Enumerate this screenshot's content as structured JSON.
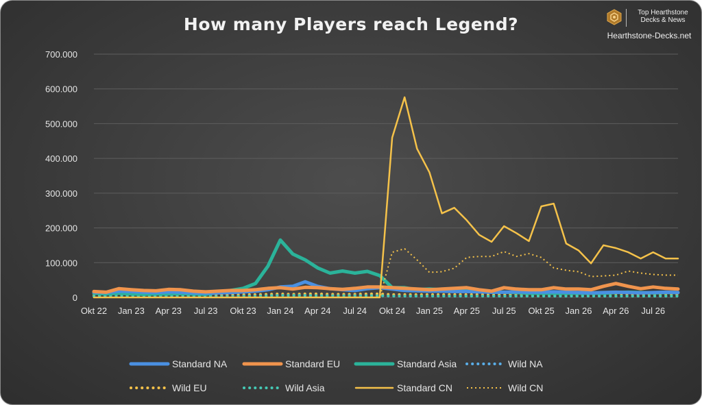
{
  "branding": {
    "line1": "Top Hearthstone",
    "line2": "Decks & News",
    "site": "Hearthstone-Decks.net",
    "logo_icon": "hexagon-logo-icon"
  },
  "chart_data": {
    "type": "line",
    "title": "How many Players reach Legend?",
    "xlabel": "",
    "ylabel": "",
    "ylim": [
      0,
      700000
    ],
    "yticks": [
      0,
      100000,
      200000,
      300000,
      400000,
      500000,
      600000,
      700000
    ],
    "ytick_labels": [
      "0",
      "100.000",
      "200.000",
      "300.000",
      "400.000",
      "500.000",
      "600.000",
      "700.000"
    ],
    "grid": true,
    "legend_position": "bottom",
    "x_tick_labels": [
      {
        "index": 0,
        "label": "Okt 22"
      },
      {
        "index": 3,
        "label": "Jan 23"
      },
      {
        "index": 6,
        "label": "Apr 23"
      },
      {
        "index": 9,
        "label": "Jul 23"
      },
      {
        "index": 12,
        "label": "Okt 23"
      },
      {
        "index": 15,
        "label": "Jan 24"
      },
      {
        "index": 18,
        "label": "Apr 24"
      },
      {
        "index": 21,
        "label": "Jul 24"
      },
      {
        "index": 24,
        "label": "Okt 24"
      },
      {
        "index": 27,
        "label": "Jan 25"
      },
      {
        "index": 30,
        "label": "Apr 25"
      },
      {
        "index": 33,
        "label": "Jul 25"
      },
      {
        "index": 36,
        "label": "Okt 25"
      },
      {
        "index": 39,
        "label": "Jan 26"
      },
      {
        "index": 42,
        "label": "Apr 26"
      },
      {
        "index": 45,
        "label": "Jul 26"
      }
    ],
    "num_points": 48,
    "series": [
      {
        "name": "Standard NA",
        "color": "#4a90e2",
        "style": "solid",
        "values": [
          15000,
          14000,
          18000,
          17000,
          15000,
          14000,
          16000,
          15000,
          13000,
          12000,
          13000,
          14000,
          16000,
          18000,
          22000,
          30000,
          32000,
          45000,
          32000,
          25000,
          22000,
          20000,
          25000,
          28000,
          24000,
          20000,
          19000,
          18000,
          18000,
          17000,
          17000,
          16000,
          15000,
          15000,
          16000,
          15000,
          15000,
          16000,
          15000,
          14000,
          13000,
          14000,
          15000,
          14000,
          13000,
          14000,
          15000,
          14000
        ]
      },
      {
        "name": "Standard EU",
        "color": "#f0944d",
        "style": "solid",
        "values": [
          17000,
          15000,
          25000,
          22000,
          20000,
          19000,
          23000,
          22000,
          18000,
          16000,
          18000,
          20000,
          20000,
          22000,
          26000,
          28000,
          24000,
          29000,
          28000,
          25000,
          23000,
          26000,
          30000,
          30000,
          28000,
          26000,
          24000,
          22000,
          24000,
          26000,
          28000,
          22000,
          18000,
          28000,
          24000,
          22000,
          22000,
          28000,
          24000,
          24000,
          22000,
          32000,
          40000,
          32000,
          25000,
          30000,
          26000,
          24000
        ]
      },
      {
        "name": "Standard Asia",
        "color": "#2bb39a",
        "style": "solid",
        "values": [
          12000,
          10000,
          12000,
          10000,
          9000,
          10000,
          10000,
          11000,
          10000,
          9000,
          14000,
          20000,
          26000,
          40000,
          90000,
          165000,
          125000,
          108000,
          85000,
          70000,
          76000,
          70000,
          75000,
          63000,
          28000,
          28000,
          22000,
          24000,
          22000,
          22000,
          20000,
          20000,
          15000,
          15000,
          14000,
          12000,
          12000,
          12000,
          12000,
          12000,
          12000,
          12000,
          14000,
          15000,
          14000,
          13000,
          14000,
          14000
        ]
      },
      {
        "name": "Wild NA",
        "color": "#5aaee8",
        "style": "dots",
        "values": [
          4000,
          4000,
          5000,
          5000,
          4000,
          4000,
          4000,
          4000,
          4000,
          4000,
          4000,
          5000,
          5000,
          5000,
          5000,
          6000,
          5000,
          5000,
          5000,
          5000,
          5000,
          5000,
          5000,
          5000,
          4000,
          4000,
          4000,
          4000,
          4000,
          4000,
          4000,
          4000,
          4000,
          4000,
          4000,
          4000,
          4000,
          4000,
          4000,
          4000,
          4000,
          4000,
          4000,
          4000,
          4000,
          4000,
          4000,
          4000
        ]
      },
      {
        "name": "Wild EU",
        "color": "#f5c24a",
        "style": "dots",
        "values": [
          6000,
          6000,
          8000,
          7000,
          6000,
          6000,
          7000,
          7000,
          6000,
          6000,
          7000,
          7000,
          8000,
          8000,
          9000,
          10000,
          9000,
          10000,
          10000,
          9000,
          9000,
          9000,
          10000,
          10000,
          8000,
          8000,
          8000,
          8000,
          8000,
          8000,
          8000,
          8000,
          7000,
          8000,
          8000,
          8000,
          8000,
          8000,
          8000,
          8000,
          8000,
          9000,
          10000,
          9000,
          8000,
          9000,
          9000,
          8000
        ]
      },
      {
        "name": "Wild Asia",
        "color": "#45c9b5",
        "style": "dots",
        "values": [
          3000,
          3000,
          4000,
          3000,
          3000,
          3000,
          3000,
          3000,
          3000,
          3000,
          3000,
          3000,
          4000,
          4000,
          5000,
          6000,
          6000,
          6000,
          5000,
          5000,
          5000,
          5000,
          5000,
          5000,
          4000,
          4000,
          4000,
          4000,
          4000,
          4000,
          4000,
          4000,
          4000,
          4000,
          4000,
          4000,
          4000,
          4000,
          4000,
          4000,
          4000,
          4000,
          4000,
          4000,
          4000,
          4000,
          4000,
          4000
        ]
      },
      {
        "name": "Standard CN",
        "color": "#f5c24a",
        "style": "solid-thin",
        "values": [
          0,
          0,
          0,
          0,
          0,
          0,
          0,
          0,
          0,
          0,
          0,
          0,
          0,
          0,
          0,
          0,
          0,
          0,
          0,
          0,
          0,
          0,
          0,
          0,
          460000,
          576000,
          428000,
          360000,
          242000,
          258000,
          222000,
          180000,
          160000,
          205000,
          185000,
          162000,
          262000,
          270000,
          155000,
          135000,
          98000,
          150000,
          142000,
          130000,
          112000,
          130000,
          112000,
          112000
        ]
      },
      {
        "name": "Wild CN",
        "color": "#f5c24a",
        "style": "dotted-thin",
        "values": [
          0,
          0,
          0,
          0,
          0,
          0,
          0,
          0,
          0,
          0,
          0,
          0,
          0,
          0,
          0,
          0,
          0,
          0,
          0,
          0,
          0,
          0,
          0,
          0,
          130000,
          140000,
          108000,
          72000,
          74000,
          84000,
          115000,
          118000,
          118000,
          132000,
          118000,
          126000,
          115000,
          85000,
          78000,
          74000,
          60000,
          62000,
          64000,
          76000,
          70000,
          66000,
          64000,
          64000
        ]
      }
    ]
  }
}
